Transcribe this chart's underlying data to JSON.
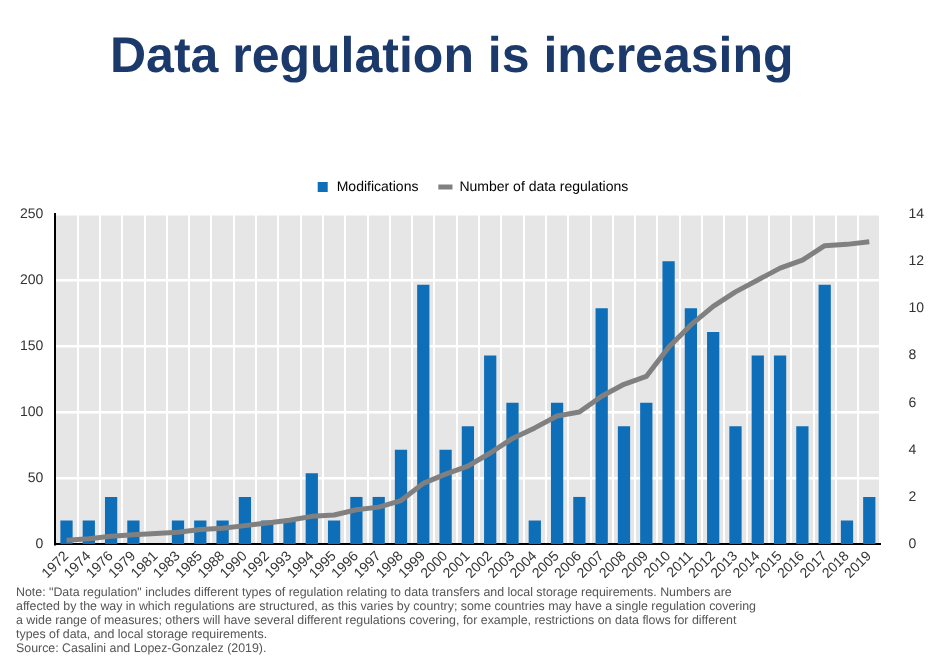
{
  "chart_data": {
    "type": "bar",
    "title": "Data regulation is increasing",
    "categories": [
      "1972",
      "1974",
      "1976",
      "1979",
      "1981",
      "1983",
      "1985",
      "1988",
      "1990",
      "1992",
      "1993",
      "1994",
      "1995",
      "1996",
      "1997",
      "1998",
      "1999",
      "2000",
      "2001",
      "2002",
      "2003",
      "2004",
      "2005",
      "2006",
      "2007",
      "2008",
      "2009",
      "2010",
      "2011",
      "2012",
      "2013",
      "2014",
      "2015",
      "2016",
      "2017",
      "2018",
      "2019"
    ],
    "series": [
      {
        "name": "Modifications",
        "axis": "y2",
        "color": "#0e6eb8",
        "values": [
          1,
          1,
          2,
          1,
          0,
          1,
          1,
          1,
          2,
          1,
          1,
          3,
          1,
          2,
          2,
          4,
          11,
          4,
          5,
          8,
          6,
          1,
          6,
          2,
          10,
          5,
          6,
          12,
          10,
          9,
          5,
          8,
          8,
          5,
          11,
          1,
          2
        ]
      },
      {
        "name": "Number of data regulations",
        "type": "line",
        "color": "#808080",
        "values": [
          3,
          4,
          6,
          7,
          8,
          9,
          11,
          12,
          14,
          16,
          18,
          21,
          22,
          26,
          28,
          33,
          46,
          53,
          59,
          69,
          80,
          88,
          97,
          100,
          112,
          121,
          127,
          149,
          166,
          180,
          191,
          200,
          209,
          215,
          226,
          227,
          229
        ]
      }
    ],
    "ylim": [
      0,
      250
    ],
    "yticks": [
      0,
      50,
      100,
      150,
      200,
      250
    ],
    "y2lim": [
      0,
      14
    ],
    "y2ticks": [
      0,
      2,
      4,
      6,
      8,
      10,
      12,
      14
    ],
    "grid": true,
    "legend": "top",
    "marker": "none",
    "line_style": "solid",
    "annotations": [
      "Note: \"Data regulation\" includes different types of regulation relating to data transfers and local storage requirements. Numbers are affected by the way in which regulations are structured, as this varies by country; some countries may have a single regulation covering a wide range of measures; others will have several different regulations covering, for example, restrictions on data flows for different types of data, and local storage requirements.",
      "Source: Casalini and Lopez-Gonzalez (2019)."
    ]
  }
}
